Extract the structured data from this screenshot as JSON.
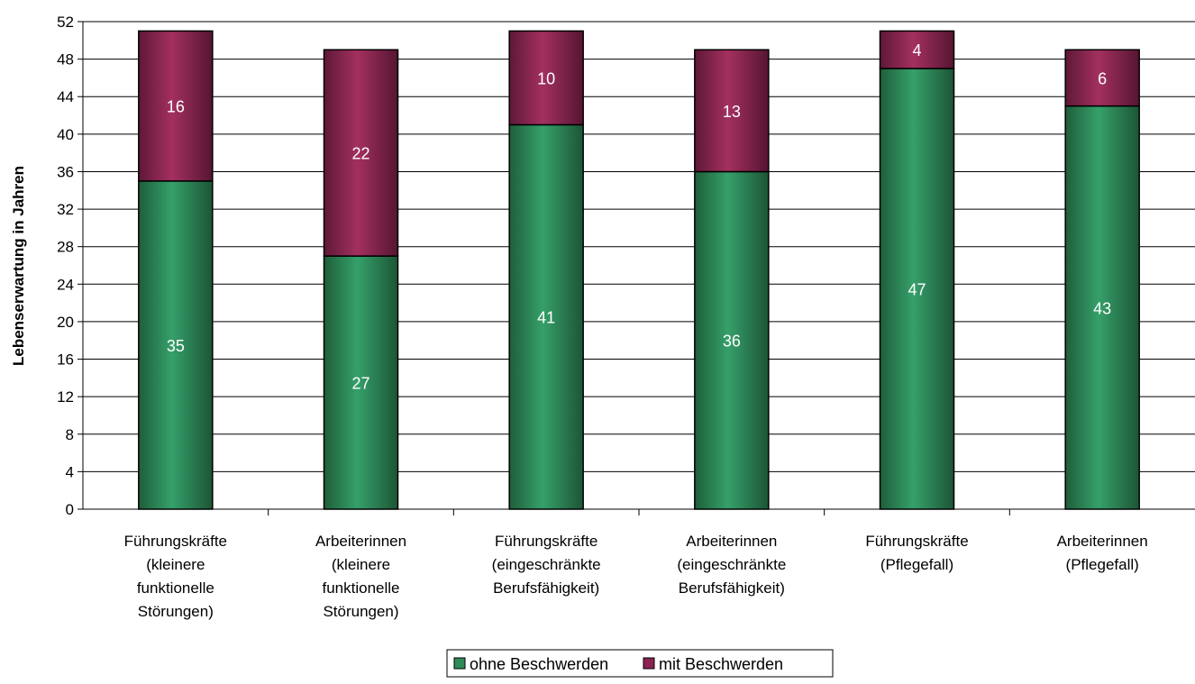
{
  "chart_data": {
    "type": "bar",
    "stacked": true,
    "categories": [
      [
        "Führungskräfte",
        "(kleinere",
        "funktionelle",
        "Störungen)"
      ],
      [
        "Arbeiterinnen",
        "(kleinere",
        "funktionelle",
        "Störungen)"
      ],
      [
        "Führungskräfte",
        "(eingeschränkte",
        "Berufsfähigkeit)"
      ],
      [
        "Arbeiterinnen",
        "(eingeschränkte",
        "Berufsfähigkeit)"
      ],
      [
        "Führungskräfte",
        "(Pflegefall)"
      ],
      [
        "Arbeiterinnen",
        "(Pflegefall)"
      ]
    ],
    "series": [
      {
        "name": "ohne Beschwerden",
        "color": "#2e8b57",
        "values": [
          35,
          27,
          41,
          36,
          47,
          43
        ]
      },
      {
        "name": "mit Beschwerden",
        "color": "#8b2252",
        "values": [
          16,
          22,
          10,
          13,
          4,
          6
        ]
      }
    ],
    "ylabel": "Lebenserwartung in Jahren",
    "ylim": [
      0,
      52
    ],
    "yticks": [
      0,
      4,
      8,
      12,
      16,
      20,
      24,
      28,
      32,
      36,
      40,
      44,
      48,
      52
    ],
    "grid": true,
    "legend_position": "bottom-center"
  }
}
